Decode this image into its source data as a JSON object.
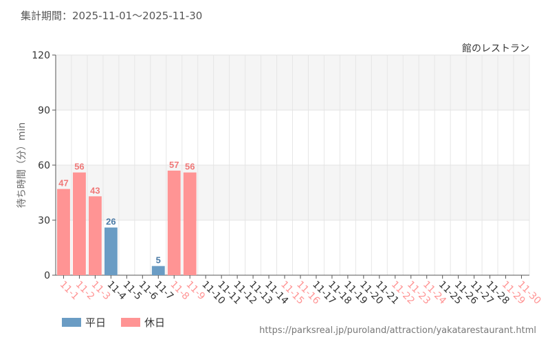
{
  "header": {
    "period": "集計期間：2025-11-01～2025-11-30",
    "series_name": "館のレストラン"
  },
  "footer": {
    "source_url": "https://parksreal.jp/puroland/attraction/yakatarestaurant.html"
  },
  "colors": {
    "weekday": "#6a9cc4",
    "holiday": "#ff9494",
    "holiday_label": "#f07878",
    "weekday_label": "#4a7aa6",
    "tick_weekday": "#333333"
  },
  "chart_data": {
    "type": "bar",
    "title": "",
    "ylabel": "待ち時間（分）min",
    "xlabel": "",
    "ylim": [
      0,
      120
    ],
    "yticks": [
      0,
      30,
      60,
      90,
      120
    ],
    "grid": true,
    "legend_position": "bottom-left",
    "legend": [
      {
        "name": "平日",
        "color": "#6a9cc4"
      },
      {
        "name": "休日",
        "color": "#ff9494"
      }
    ],
    "categories": [
      "11-1",
      "11-2",
      "11-3",
      "11-4",
      "11-5",
      "11-6",
      "11-7",
      "11-8",
      "11-9",
      "11-10",
      "11-11",
      "11-12",
      "11-13",
      "11-14",
      "11-15",
      "11-16",
      "11-17",
      "11-18",
      "11-19",
      "11-20",
      "11-21",
      "11-22",
      "11-23",
      "11-24",
      "11-25",
      "11-26",
      "11-27",
      "11-28",
      "11-29",
      "11-30"
    ],
    "day_types": [
      "holiday",
      "holiday",
      "holiday",
      "weekday",
      "weekday",
      "weekday",
      "weekday",
      "holiday",
      "holiday",
      "weekday",
      "weekday",
      "weekday",
      "weekday",
      "weekday",
      "holiday",
      "holiday",
      "weekday",
      "weekday",
      "weekday",
      "weekday",
      "weekday",
      "holiday",
      "holiday",
      "holiday",
      "weekday",
      "weekday",
      "weekday",
      "weekday",
      "holiday",
      "holiday"
    ],
    "values": [
      47,
      56,
      43,
      26,
      null,
      null,
      5,
      57,
      56,
      null,
      null,
      null,
      null,
      null,
      null,
      null,
      null,
      null,
      null,
      null,
      null,
      null,
      null,
      null,
      null,
      null,
      null,
      null,
      null,
      null
    ]
  }
}
